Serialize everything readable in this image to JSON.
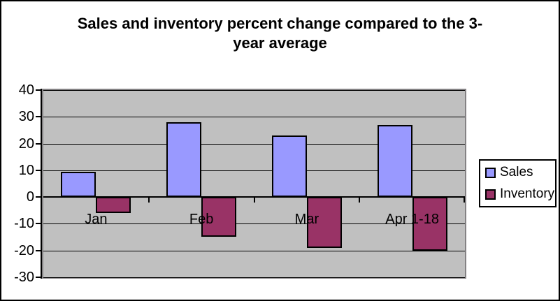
{
  "chart_data": {
    "type": "bar",
    "title": "Sales and inventory percent change compared to the 3-year average",
    "title_lines": [
      "Sales and inventory percent change compared to the 3-",
      "year average"
    ],
    "categories": [
      "Jan",
      "Feb",
      "Mar",
      "Apr 1-18"
    ],
    "series": [
      {
        "name": "Sales",
        "color": "#9999FF",
        "values": [
          9.5,
          28,
          23,
          27
        ]
      },
      {
        "name": "Inventory",
        "color": "#993366",
        "values": [
          -6,
          -15,
          -19,
          -20
        ]
      }
    ],
    "ylim": [
      -30,
      40
    ],
    "yticks": [
      40,
      30,
      20,
      10,
      0,
      -10,
      -20,
      -30
    ],
    "xlabel": "",
    "ylabel": "",
    "grid": true,
    "legend_position": "right",
    "colors": {
      "plot_bg": "#C0C0C0",
      "plot_border": "#848284",
      "gridline": "#000000",
      "bar_border": "#000000",
      "axis": "#000000",
      "frame_border": "#000000",
      "text": "#000000"
    }
  }
}
